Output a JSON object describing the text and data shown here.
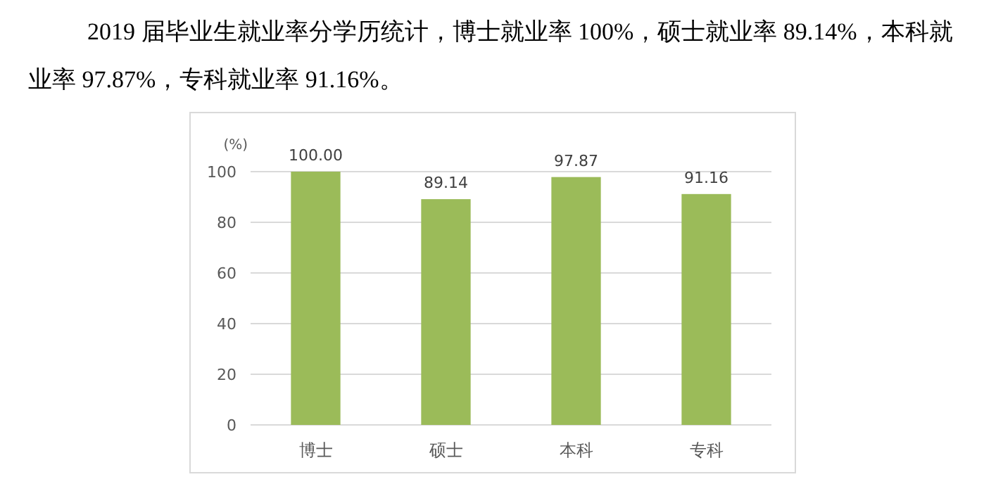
{
  "chart_data": {
    "type": "bar",
    "title": "2019 届毕业生就业率分学历统计，博士就业率 100%，硕士就业率 89.14%，本科就业率 97.87%，专科就业率 91.16%。",
    "ylabel": "(%)",
    "categories": [
      "博士",
      "硕士",
      "本科",
      "专科"
    ],
    "values": [
      100,
      89.14,
      97.87,
      91.16
    ],
    "value_labels": [
      "100.00",
      "89.14",
      "97.87",
      "91.16"
    ],
    "color": "#9bbb59",
    "ylim": [
      0,
      100
    ],
    "yticks": [
      0,
      20,
      40,
      60,
      80,
      100
    ],
    "grid": "y"
  }
}
